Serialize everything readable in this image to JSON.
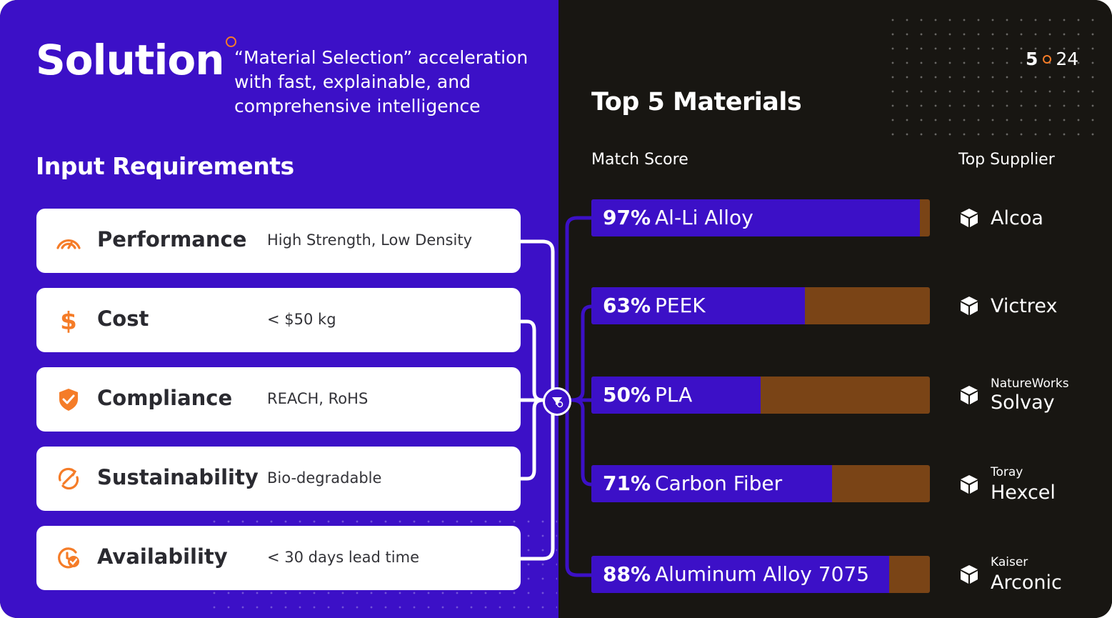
{
  "header": {
    "title": "Solution",
    "subtitle": "“Material Selection” acceleration with fast, explainable, and comprehensive intelligence"
  },
  "left": {
    "section_title": "Input Requirements",
    "requirements": [
      {
        "label": "Performance",
        "value": "High Strength, Low Density",
        "icon": "gauge-icon"
      },
      {
        "label": "Cost",
        "value": "< $50 kg",
        "icon": "dollar-icon"
      },
      {
        "label": "Compliance",
        "value": "REACH, RoHS",
        "icon": "shield-check-icon"
      },
      {
        "label": "Sustainability",
        "value": "Bio-degradable",
        "icon": "recycle-icon"
      },
      {
        "label": "Availability",
        "value": "< 30 days lead time",
        "icon": "clock-check-icon"
      }
    ]
  },
  "right": {
    "title": "Top 5 Materials",
    "page": {
      "current": "5",
      "total": "24"
    },
    "col_match": "Match Score",
    "col_supplier": "Top Supplier",
    "materials": [
      {
        "pct": "97%",
        "name": "Al-Li Alloy",
        "score": 0.97,
        "supplier_sub": "",
        "supplier": "Alcoa"
      },
      {
        "pct": "63%",
        "name": "PEEK",
        "score": 0.63,
        "supplier_sub": "",
        "supplier": "Victrex"
      },
      {
        "pct": "50%",
        "name": "PLA",
        "score": 0.5,
        "supplier_sub": "NatureWorks",
        "supplier": "Solvay"
      },
      {
        "pct": "71%",
        "name": "Carbon Fiber",
        "score": 0.71,
        "supplier_sub": "Toray",
        "supplier": "Hexcel"
      },
      {
        "pct": "88%",
        "name": "Aluminum Alloy 7075",
        "score": 0.88,
        "supplier_sub": "Kaiser",
        "supplier": "Arconic"
      }
    ]
  },
  "colors": {
    "purple": "#3c10c7",
    "brown": "#7a4416",
    "orange": "#f57c28",
    "dark": "#181612"
  }
}
